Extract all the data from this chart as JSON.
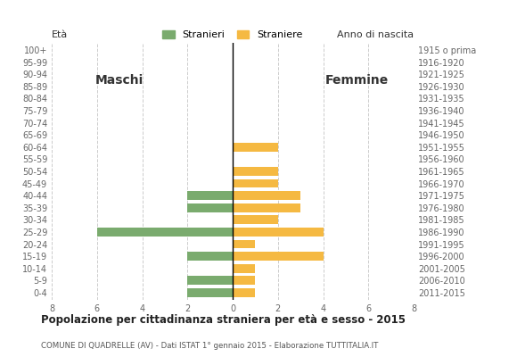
{
  "age_groups": [
    "0-4",
    "5-9",
    "10-14",
    "15-19",
    "20-24",
    "25-29",
    "30-34",
    "35-39",
    "40-44",
    "45-49",
    "50-54",
    "55-59",
    "60-64",
    "65-69",
    "70-74",
    "75-79",
    "80-84",
    "85-89",
    "90-94",
    "95-99",
    "100+"
  ],
  "birth_years": [
    "2011-2015",
    "2006-2010",
    "2001-2005",
    "1996-2000",
    "1991-1995",
    "1986-1990",
    "1981-1985",
    "1976-1980",
    "1971-1975",
    "1966-1970",
    "1961-1965",
    "1956-1960",
    "1951-1955",
    "1946-1950",
    "1941-1945",
    "1936-1940",
    "1931-1935",
    "1926-1930",
    "1921-1925",
    "1916-1920",
    "1915 o prima"
  ],
  "maschi": [
    2,
    2,
    0,
    2,
    0,
    6,
    0,
    2,
    2,
    0,
    0,
    0,
    0,
    0,
    0,
    0,
    0,
    0,
    0,
    0,
    0
  ],
  "femmine": [
    1,
    1,
    1,
    4,
    1,
    4,
    2,
    3,
    3,
    2,
    2,
    0,
    2,
    0,
    0,
    0,
    0,
    0,
    0,
    0,
    0
  ],
  "color_maschi": "#7aab6e",
  "color_femmine": "#f5b942",
  "title": "Popolazione per cittadinanza straniera per età e sesso - 2015",
  "subtitle": "COMUNE DI QUADRELLE (AV) - Dati ISTAT 1° gennaio 2015 - Elaborazione TUTTITALIA.IT",
  "legend_maschi": "Stranieri",
  "legend_femmine": "Straniere",
  "label_maschi": "Maschi",
  "label_femmine": "Femmine",
  "eta_label": "Età",
  "anno_label": "Anno di nascita",
  "xlim": 8,
  "background_color": "#ffffff",
  "grid_color": "#cccccc"
}
